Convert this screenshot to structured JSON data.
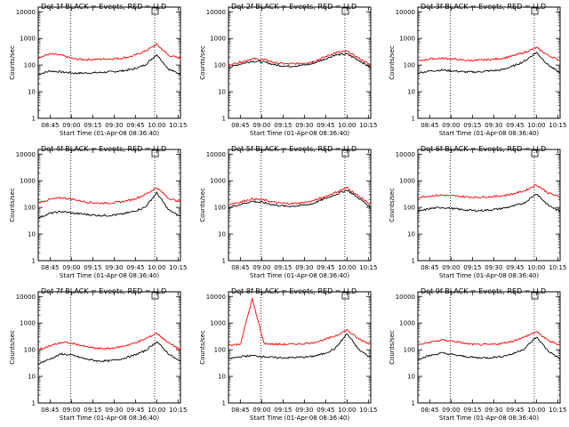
{
  "chart_data": [
    {
      "type": "line",
      "title": "Det 1f BLACK = Events, RED = LLD",
      "xlabel": "Start Time (01-Apr-08 08:36:40)",
      "ylabel": "Counts/sec",
      "xticks": [
        "08:45",
        "09:00",
        "09:15",
        "09:30",
        "09:45",
        "10:00",
        "10:15"
      ],
      "yticks": [
        "1",
        "10",
        "100",
        "1000",
        "10000"
      ],
      "ylim": [
        1,
        15000
      ],
      "yscale": "log",
      "xlim": [
        "08:36:40",
        "10:16:40"
      ],
      "series": [
        {
          "name": "Events",
          "color": "#000000",
          "values": [
            45,
            60,
            55,
            50,
            50,
            52,
            55,
            60,
            70,
            100,
            250,
            70,
            45
          ]
        },
        {
          "name": "LLD",
          "color": "#ff0000",
          "values": [
            190,
            260,
            230,
            170,
            160,
            165,
            170,
            180,
            220,
            330,
            600,
            230,
            180
          ]
        }
      ]
    },
    {
      "type": "line",
      "title": "Det 2f BLACK = Events, RED = LLD",
      "xlabel": "Start Time (01-Apr-08 08:36:40)",
      "ylabel": "Counts/sec",
      "xticks": [
        "08:45",
        "09:00",
        "09:15",
        "09:30",
        "09:45",
        "10:00",
        "10:15"
      ],
      "yticks": [
        "1",
        "10",
        "100",
        "1000",
        "10000"
      ],
      "ylim": [
        1,
        15000
      ],
      "yscale": "log",
      "xlim": [
        "08:36:40",
        "10:16:40"
      ],
      "series": [
        {
          "name": "Events",
          "color": "#000000",
          "values": [
            80,
            110,
            140,
            130,
            100,
            90,
            95,
            110,
            160,
            240,
            260,
            150,
            80
          ]
        },
        {
          "name": "LLD",
          "color": "#ff0000",
          "values": [
            100,
            130,
            170,
            160,
            120,
            110,
            115,
            130,
            190,
            290,
            330,
            180,
            100
          ]
        }
      ]
    },
    {
      "type": "line",
      "title": "Det 3f BLACK = Events, RED = LLD",
      "xlabel": "Start Time (01-Apr-08 08:36:40)",
      "ylabel": "Counts/sec",
      "xticks": [
        "08:45",
        "09:00",
        "09:15",
        "09:30",
        "09:45",
        "10:00",
        "10:15"
      ],
      "yticks": [
        "1",
        "10",
        "100",
        "1000",
        "10000"
      ],
      "ylim": [
        1,
        15000
      ],
      "yscale": "log",
      "xlim": [
        "08:36:40",
        "10:16:40"
      ],
      "series": [
        {
          "name": "Events",
          "color": "#000000",
          "values": [
            50,
            60,
            65,
            60,
            55,
            55,
            60,
            65,
            90,
            140,
            300,
            100,
            50
          ]
        },
        {
          "name": "LLD",
          "color": "#ff0000",
          "values": [
            140,
            170,
            180,
            170,
            150,
            150,
            160,
            175,
            220,
            300,
            450,
            230,
            150
          ]
        }
      ]
    },
    {
      "type": "line",
      "title": "Det 4f BLACK = Events, RED = LLD",
      "xlabel": "Start Time (01-Apr-08 08:36:40)",
      "ylabel": "Counts/sec",
      "xticks": [
        "08:45",
        "09:00",
        "09:15",
        "09:30",
        "09:45",
        "10:00",
        "10:15"
      ],
      "yticks": [
        "1",
        "10",
        "100",
        "1000",
        "10000"
      ],
      "ylim": [
        1,
        15000
      ],
      "yscale": "log",
      "xlim": [
        "08:36:40",
        "10:16:40"
      ],
      "series": [
        {
          "name": "Events",
          "color": "#000000",
          "values": [
            40,
            60,
            70,
            60,
            55,
            50,
            50,
            55,
            70,
            100,
            350,
            80,
            45
          ]
        },
        {
          "name": "LLD",
          "color": "#ff0000",
          "values": [
            150,
            200,
            230,
            200,
            160,
            145,
            145,
            160,
            200,
            300,
            550,
            220,
            160
          ]
        }
      ]
    },
    {
      "type": "line",
      "title": "Det 5f BLACK = Events, RED = LLD",
      "xlabel": "Start Time (01-Apr-08 08:36:40)",
      "ylabel": "Counts/sec",
      "xticks": [
        "08:45",
        "09:00",
        "09:15",
        "09:30",
        "09:45",
        "10:00",
        "10:15"
      ],
      "yticks": [
        "1",
        "10",
        "100",
        "1000",
        "10000"
      ],
      "ylim": [
        1,
        15000
      ],
      "yscale": "log",
      "xlim": [
        "08:36:40",
        "10:16:40"
      ],
      "series": [
        {
          "name": "Events",
          "color": "#000000",
          "values": [
            100,
            130,
            170,
            150,
            120,
            110,
            115,
            135,
            200,
            300,
            450,
            220,
            100
          ]
        },
        {
          "name": "LLD",
          "color": "#ff0000",
          "values": [
            130,
            160,
            210,
            190,
            150,
            140,
            145,
            170,
            240,
            360,
            550,
            260,
            130
          ]
        }
      ]
    },
    {
      "type": "line",
      "title": "Det 6f BLACK = Events, RED = LLD",
      "xlabel": "Start Time (01-Apr-08 08:36:40)",
      "ylabel": "Counts/sec",
      "xticks": [
        "08:45",
        "09:00",
        "09:15",
        "09:30",
        "09:45",
        "10:00",
        "10:15"
      ],
      "yticks": [
        "1",
        "10",
        "100",
        "1000",
        "10000"
      ],
      "ylim": [
        1,
        15000
      ],
      "yscale": "log",
      "xlim": [
        "08:36:40",
        "10:16:40"
      ],
      "series": [
        {
          "name": "Events",
          "color": "#000000",
          "values": [
            70,
            90,
            100,
            90,
            80,
            75,
            80,
            90,
            110,
            150,
            330,
            120,
            70
          ]
        },
        {
          "name": "LLD",
          "color": "#ff0000",
          "values": [
            240,
            270,
            290,
            270,
            250,
            240,
            250,
            270,
            320,
            420,
            700,
            350,
            240
          ]
        }
      ]
    },
    {
      "type": "line",
      "title": "Det 7f BLACK = Events, RED = LLD",
      "xlabel": "Start Time (01-Apr-08 08:36:40)",
      "ylabel": "Counts/sec",
      "xticks": [
        "08:45",
        "09:00",
        "09:15",
        "09:30",
        "09:45",
        "10:00",
        "10:15"
      ],
      "yticks": [
        "1",
        "10",
        "100",
        "1000",
        "10000"
      ],
      "ylim": [
        1,
        15000
      ],
      "yscale": "log",
      "xlim": [
        "08:36:40",
        "10:16:40"
      ],
      "series": [
        {
          "name": "Events",
          "color": "#000000",
          "values": [
            30,
            45,
            70,
            60,
            45,
            38,
            38,
            45,
            60,
            90,
            200,
            70,
            35
          ]
        },
        {
          "name": "LLD",
          "color": "#ff0000",
          "values": [
            100,
            140,
            190,
            170,
            130,
            110,
            110,
            130,
            170,
            250,
            420,
            180,
            100
          ]
        }
      ]
    },
    {
      "type": "line",
      "title": "Det 8f BLACK = Events, RED = LLD",
      "xlabel": "Start Time (01-Apr-08 08:36:40)",
      "ylabel": "Counts/sec",
      "xticks": [
        "08:45",
        "09:00",
        "09:15",
        "09:30",
        "09:45",
        "10:00",
        "10:15"
      ],
      "yticks": [
        "1",
        "10",
        "100",
        "1000",
        "10000"
      ],
      "ylim": [
        1,
        15000
      ],
      "yscale": "log",
      "xlim": [
        "08:36:40",
        "10:16:40"
      ],
      "series": [
        {
          "name": "Events",
          "color": "#000000",
          "values": [
            45,
            55,
            60,
            55,
            50,
            50,
            52,
            55,
            70,
            110,
            400,
            100,
            50
          ]
        },
        {
          "name": "LLD",
          "color": "#ff0000",
          "values": [
            150,
            160,
            8000,
            170,
            160,
            160,
            165,
            180,
            230,
            330,
            550,
            250,
            160
          ]
        }
      ]
    },
    {
      "type": "line",
      "title": "Det 9f BLACK = Events, RED = LLD",
      "xlabel": "Start Time (01-Apr-08 08:36:40)",
      "ylabel": "Counts/sec",
      "xticks": [
        "08:45",
        "09:00",
        "09:15",
        "09:30",
        "09:45",
        "10:00",
        "10:15"
      ],
      "yticks": [
        "1",
        "10",
        "100",
        "1000",
        "10000"
      ],
      "ylim": [
        1,
        15000
      ],
      "yscale": "log",
      "xlim": [
        "08:36:40",
        "10:16:40"
      ],
      "series": [
        {
          "name": "Events",
          "color": "#000000",
          "values": [
            45,
            60,
            75,
            65,
            55,
            50,
            50,
            55,
            70,
            110,
            300,
            90,
            45
          ]
        },
        {
          "name": "LLD",
          "color": "#ff0000",
          "values": [
            150,
            190,
            230,
            210,
            170,
            155,
            155,
            170,
            210,
            300,
            480,
            220,
            150
          ]
        }
      ]
    }
  ]
}
